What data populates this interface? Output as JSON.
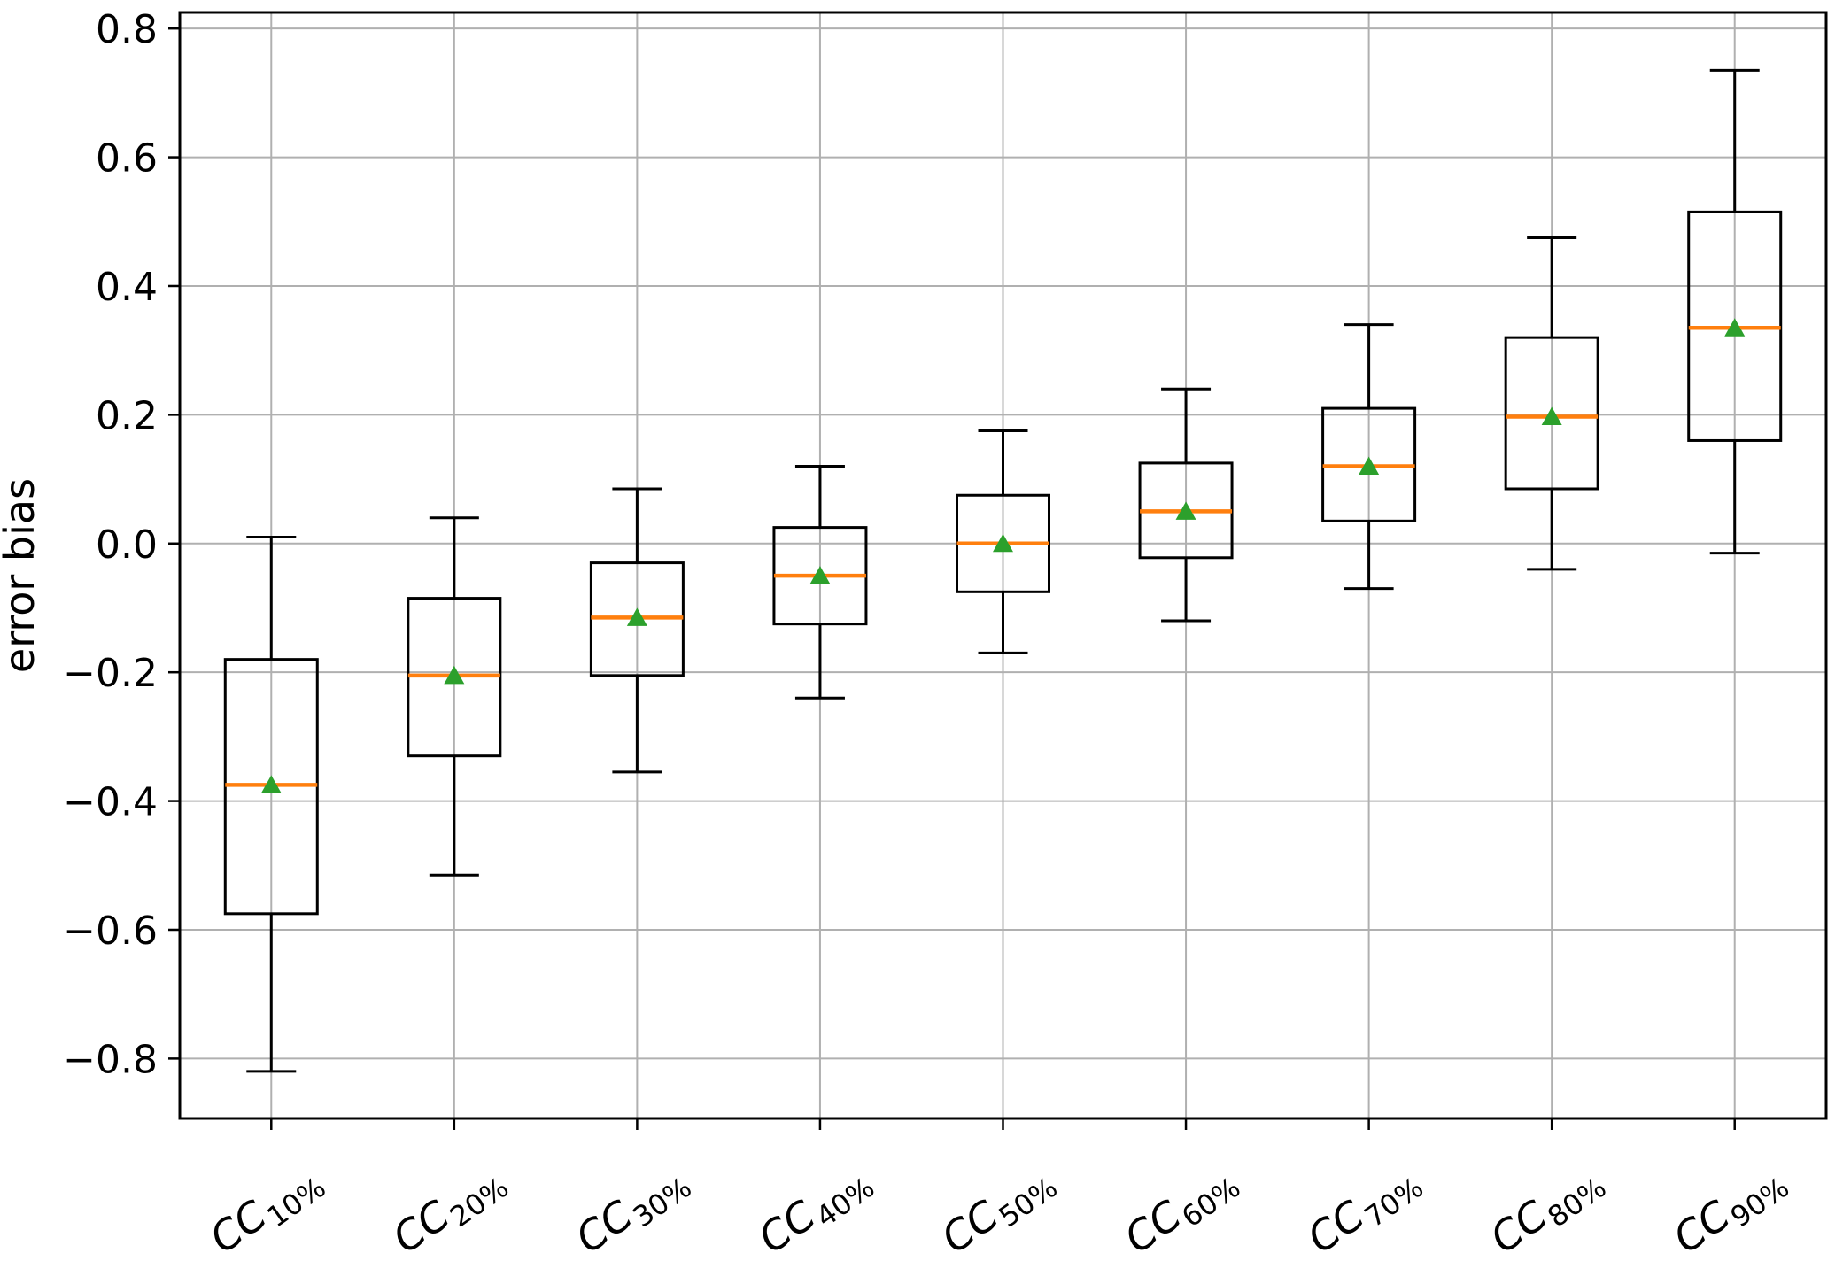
{
  "chart_data": {
    "type": "boxplot",
    "title": "",
    "xlabel": "",
    "ylabel": "error bias",
    "grid": true,
    "legend": "none",
    "ylim": [
      -0.893,
      0.825
    ],
    "yticks": [
      0.8,
      0.6,
      0.4,
      0.2,
      0.0,
      -0.2,
      -0.4,
      -0.6,
      -0.8
    ],
    "ytick_labels": [
      "0.8",
      "0.6",
      "0.4",
      "0.2",
      "0.0",
      "−0.2",
      "−0.4",
      "−0.6",
      "−0.8"
    ],
    "categories": [
      {
        "base": "CC",
        "sub": "10%"
      },
      {
        "base": "CC",
        "sub": "20%"
      },
      {
        "base": "CC",
        "sub": "30%"
      },
      {
        "base": "CC",
        "sub": "40%"
      },
      {
        "base": "CC",
        "sub": "50%"
      },
      {
        "base": "CC",
        "sub": "60%"
      },
      {
        "base": "CC",
        "sub": "70%"
      },
      {
        "base": "CC",
        "sub": "80%"
      },
      {
        "base": "CC",
        "sub": "90%"
      }
    ],
    "boxes": [
      {
        "label": "CC10%",
        "whisker_low": -0.82,
        "q1": -0.575,
        "median": -0.375,
        "mean": -0.375,
        "q3": -0.18,
        "whisker_high": 0.01
      },
      {
        "label": "CC20%",
        "whisker_low": -0.515,
        "q1": -0.33,
        "median": -0.205,
        "mean": -0.205,
        "q3": -0.085,
        "whisker_high": 0.04
      },
      {
        "label": "CC30%",
        "whisker_low": -0.355,
        "q1": -0.205,
        "median": -0.115,
        "mean": -0.115,
        "q3": -0.03,
        "whisker_high": 0.085
      },
      {
        "label": "CC40%",
        "whisker_low": -0.24,
        "q1": -0.125,
        "median": -0.05,
        "mean": -0.05,
        "q3": 0.025,
        "whisker_high": 0.12
      },
      {
        "label": "CC50%",
        "whisker_low": -0.17,
        "q1": -0.075,
        "median": 0.0,
        "mean": 0.0,
        "q3": 0.075,
        "whisker_high": 0.175
      },
      {
        "label": "CC60%",
        "whisker_low": -0.12,
        "q1": -0.022,
        "median": 0.05,
        "mean": 0.05,
        "q3": 0.125,
        "whisker_high": 0.24
      },
      {
        "label": "CC70%",
        "whisker_low": -0.07,
        "q1": 0.035,
        "median": 0.12,
        "mean": 0.12,
        "q3": 0.21,
        "whisker_high": 0.34
      },
      {
        "label": "CC80%",
        "whisker_low": -0.04,
        "q1": 0.085,
        "median": 0.197,
        "mean": 0.197,
        "q3": 0.32,
        "whisker_high": 0.475
      },
      {
        "label": "CC90%",
        "whisker_low": -0.015,
        "q1": 0.16,
        "median": 0.335,
        "mean": 0.335,
        "q3": 0.515,
        "whisker_high": 0.735
      }
    ],
    "mean_marker": "triangle-up",
    "colors": {
      "box_line": "#000000",
      "whisker_line": "#000000",
      "median_line": "#ff7f0e",
      "mean_marker": "#2ca02c",
      "grid_line": "#b0b0b0",
      "axis_line": "#000000",
      "tick_label": "#000000",
      "background": "#ffffff"
    }
  }
}
